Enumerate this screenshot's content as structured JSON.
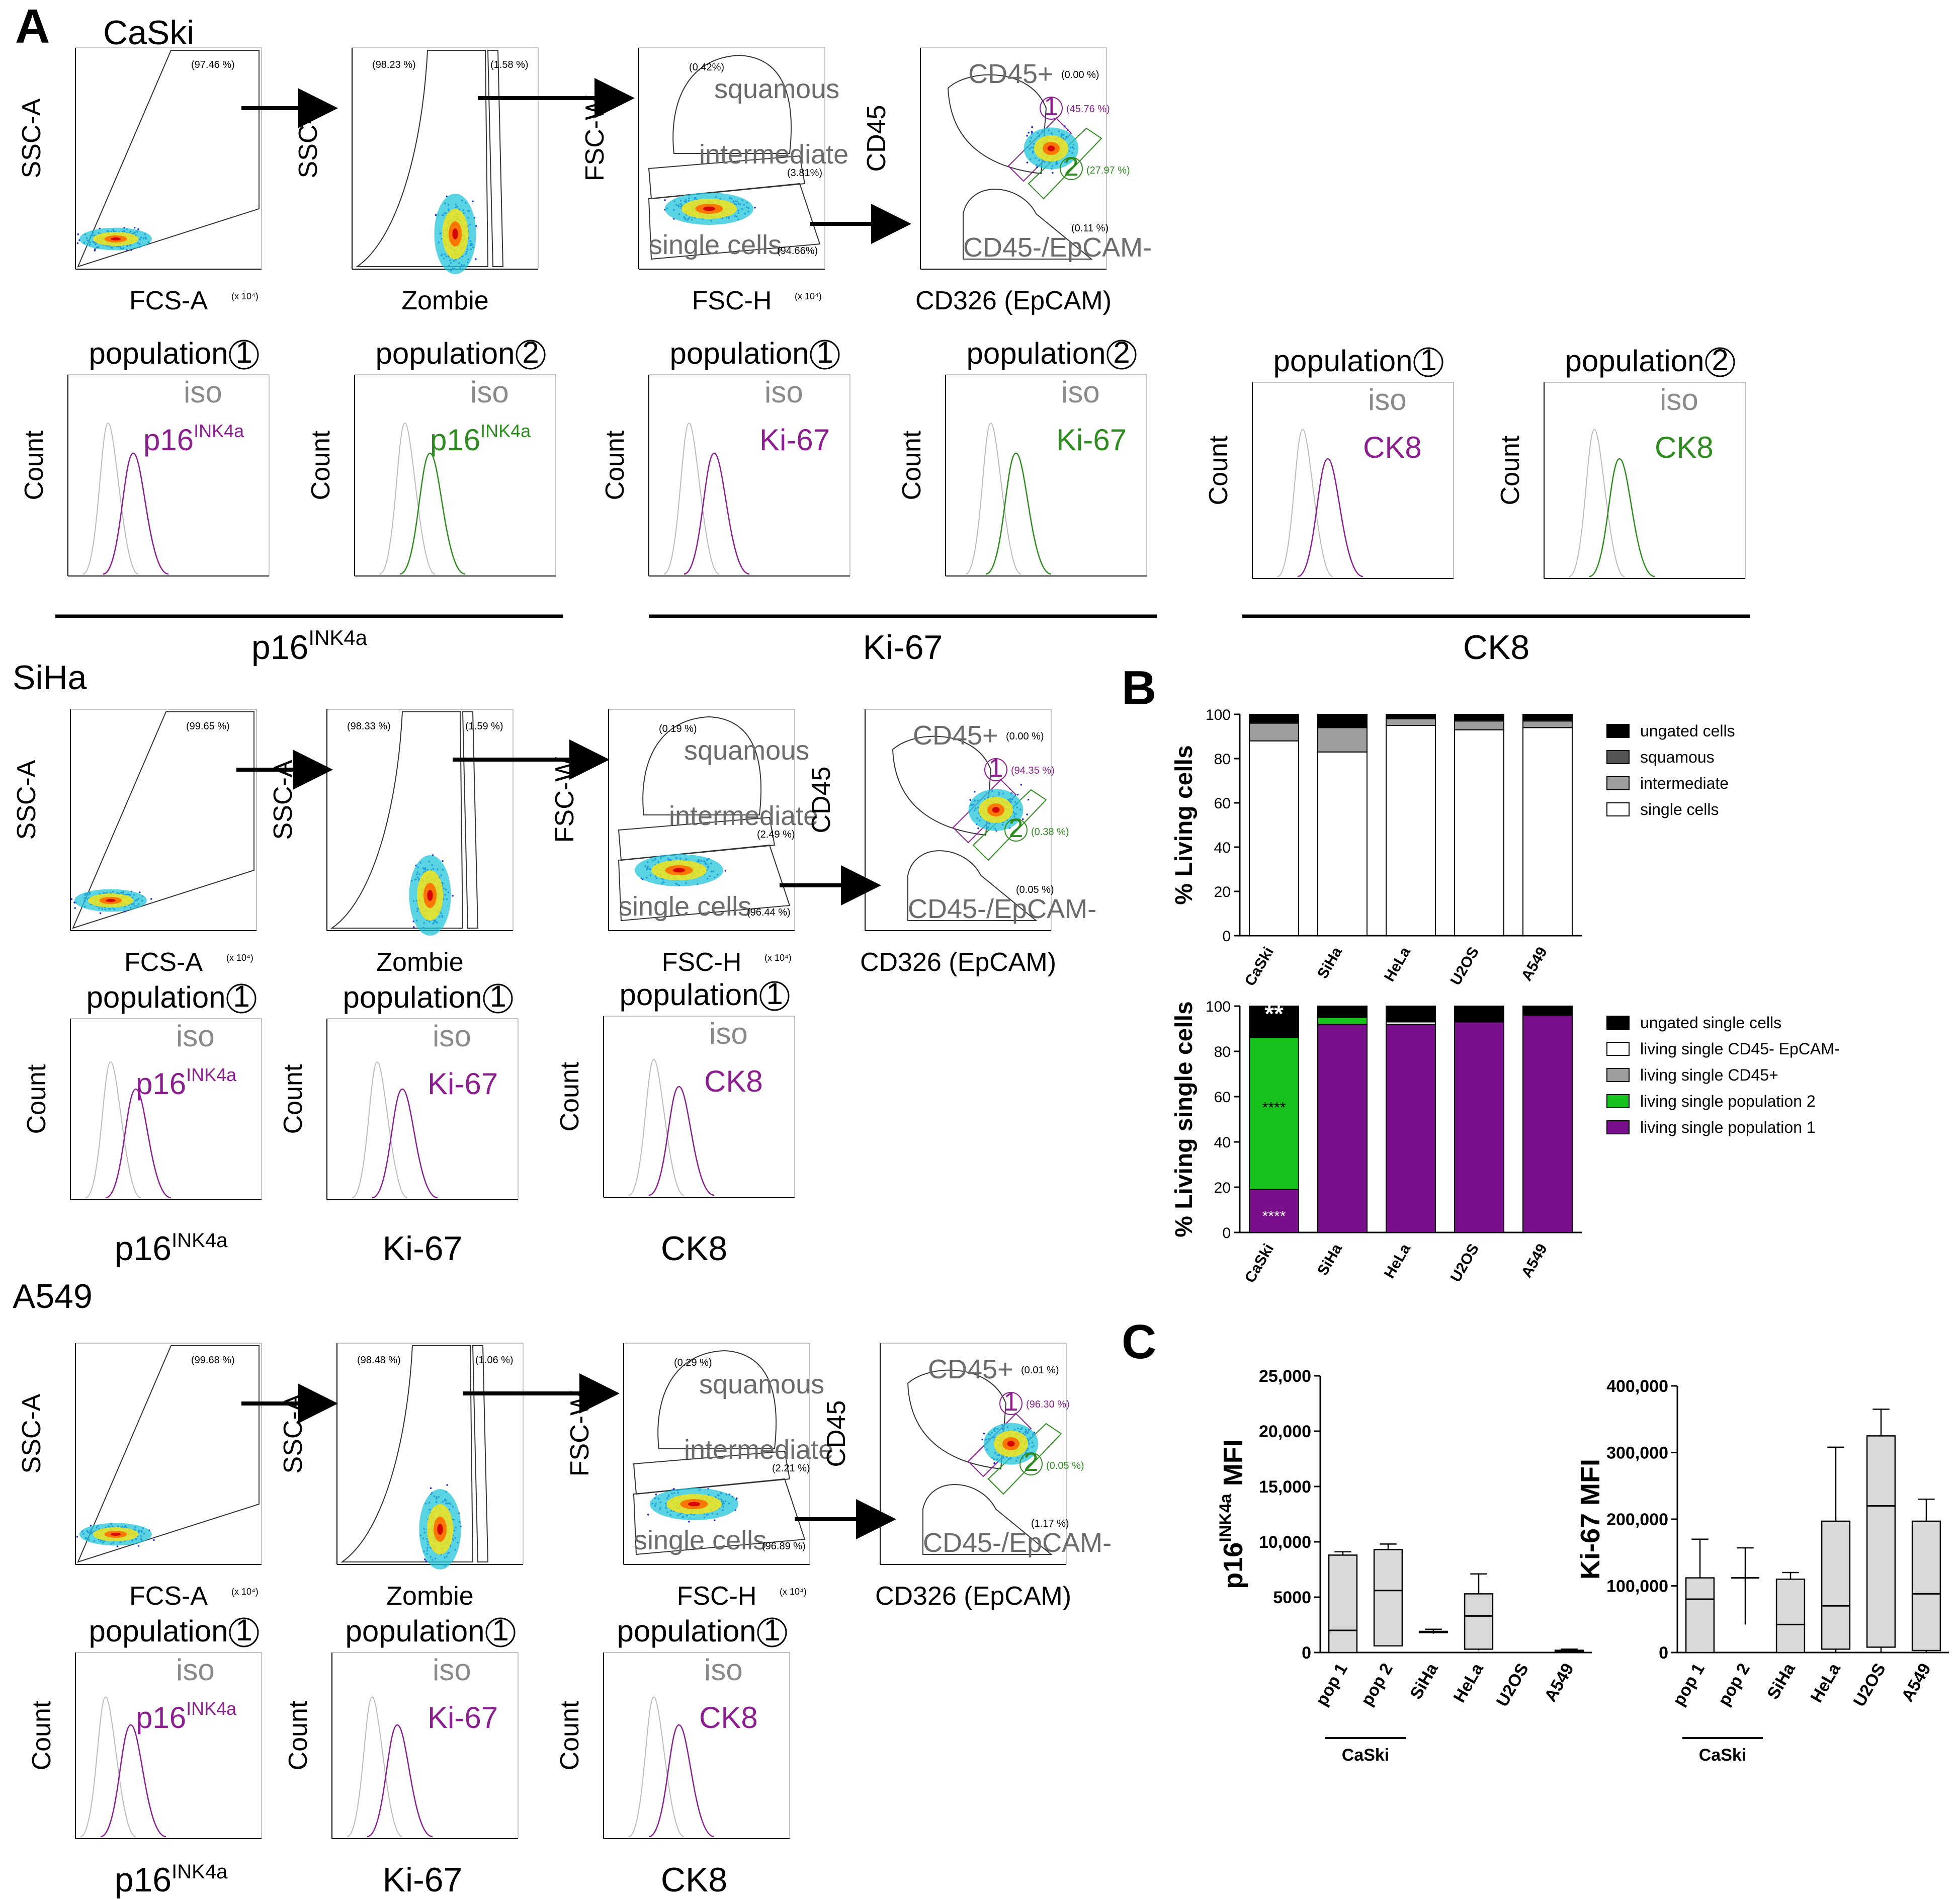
{
  "panel_letters": {
    "a": "A",
    "b": "B",
    "c": "C"
  },
  "cell_lines": {
    "caski": "CaSki",
    "siha": "SiHa",
    "a549": "A549"
  },
  "facs_labels": {
    "ssc_a": "SSC-A",
    "fcs_a": "FCS-A",
    "zombie": "Zombie",
    "fsc_w": "FSC-W",
    "fsc_h": "FSC-H",
    "cd45": "CD45",
    "cd326": "CD326 (EpCAM)",
    "count": "Count",
    "squamous": "squamous",
    "intermediate": "intermediate",
    "single_cells": "single cells",
    "cd45_pos": "CD45+",
    "cd45_neg_epcam_neg": "CD45-/EpCAM-",
    "iso": "iso",
    "p16": "p16",
    "ink4a": "INK4a",
    "ki67": "Ki-67",
    "ck8": "CK8",
    "population": "population",
    "pop1_circle": "1",
    "pop2_circle": "2",
    "x1e5": "(x 10⁵)",
    "x1e4": "(x 10⁴)",
    "x1e1": "(x 10¹)"
  },
  "facs_percent": {
    "caski": {
      "fcs": "(97.46 %)",
      "zombie_left": "(98.23 %)",
      "zombie_right": "(1.58 %)",
      "squamous": "(0.42%)",
      "intermediate": "(3.81%)",
      "single": "(94.66%)",
      "cd45pos": "(0.00 %)",
      "pop1": "(45.76 %)",
      "pop2": "(27.97 %)",
      "neg": "(0.11 %)"
    },
    "siha": {
      "fcs": "(99.65 %)",
      "zombie_left": "(98.33 %)",
      "zombie_right": "(1.59 %)",
      "squamous": "(0.19 %)",
      "intermediate": "(2.49 %)",
      "single": "(96.44 %)",
      "cd45pos": "(0.00 %)",
      "pop1": "(94.35 %)",
      "pop2": "(0.38 %)",
      "neg": "(0.05 %)"
    },
    "a549": {
      "fcs": "(99.68 %)",
      "zombie_left": "(98.48 %)",
      "zombie_right": "(1.06 %)",
      "squamous": "(0.29 %)",
      "intermediate": "(2.21 %)",
      "single": "(96.89 %)",
      "cd45pos": "(0.01 %)",
      "pop1": "(96.30 %)",
      "pop2": "(0.05 %)",
      "neg": "(1.17 %)"
    }
  },
  "colors": {
    "purple": "#8b1f8f",
    "green": "#2e8b1f",
    "gray": "#8a8a8a",
    "black": "#000000",
    "dot_blue": "#1a2fd6",
    "bar_purple": "#7a0f8c",
    "bar_green": "#17c21c",
    "box_fill": "#d9d9d9"
  },
  "chart_data": [
    {
      "type": "bar",
      "stacked": true,
      "panel": "B",
      "ylabel": "% Living cells",
      "ylim": [
        0,
        100
      ],
      "yticks": [
        "0",
        "20",
        "40",
        "60",
        "80",
        "100"
      ],
      "categories": [
        "CaSki",
        "SiHa",
        "HeLa",
        "U2OS",
        "A549"
      ],
      "legend_position": "right",
      "series": [
        {
          "name": "single cells",
          "color": "#ffffff",
          "values": [
            88,
            83,
            95,
            93,
            94
          ]
        },
        {
          "name": "intermediate",
          "color": "#9e9e9e",
          "values": [
            8,
            11,
            3,
            4,
            3
          ]
        },
        {
          "name": "squamous",
          "color": "#555555",
          "values": [
            0.5,
            0.5,
            0.5,
            0.5,
            0.5
          ]
        },
        {
          "name": "ungated cells",
          "color": "#000000",
          "values": [
            3.5,
            5.5,
            1.5,
            2.5,
            2.5
          ]
        }
      ]
    },
    {
      "type": "bar",
      "stacked": true,
      "panel": "B",
      "ylabel": "% Living single cells",
      "ylim": [
        0,
        100
      ],
      "yticks": [
        "0",
        "20",
        "40",
        "60",
        "80",
        "100"
      ],
      "categories": [
        "CaSki",
        "SiHa",
        "HeLa",
        "U2OS",
        "A549"
      ],
      "legend_position": "right",
      "annotations": {
        "caski_top": "**",
        "caski_middle": "****",
        "caski_bottom": "****"
      },
      "series": [
        {
          "name": "living single population 1",
          "color": "#7a0f8c",
          "values": [
            19,
            92,
            92,
            93,
            96
          ]
        },
        {
          "name": "living single population 2",
          "color": "#17c21c",
          "values": [
            67,
            3,
            0,
            0,
            0
          ]
        },
        {
          "name": "living single CD45+",
          "color": "#9e9e9e",
          "values": [
            0.5,
            0,
            0,
            0,
            0
          ]
        },
        {
          "name": "living single CD45- EpCAM-",
          "color": "#ffffff",
          "values": [
            0.5,
            0,
            1,
            0,
            0
          ]
        },
        {
          "name": "ungated single cells",
          "color": "#000000",
          "values": [
            13,
            5,
            7,
            7,
            4
          ]
        }
      ]
    },
    {
      "type": "box",
      "panel": "C",
      "ylabel": "p16",
      "ylabel_sup": "INK4a",
      "ylabel_suffix": " MFI",
      "ylim": [
        0,
        25000
      ],
      "yticks": [
        "0",
        "5000",
        "10,000",
        "15,000",
        "20,000",
        "25,000"
      ],
      "categories": [
        "pop 1",
        "pop 2",
        "SiHa",
        "HeLa",
        "U2OS",
        "A549"
      ],
      "group_label": "CaSki",
      "boxes": [
        {
          "min": 0,
          "q1": 0,
          "median": 2000,
          "q3": 8800,
          "max": 9100
        },
        {
          "min": 600,
          "q1": 600,
          "median": 5600,
          "q3": 9300,
          "max": 9800
        },
        {
          "min": 1700,
          "q1": 1800,
          "median": 1900,
          "q3": 1900,
          "max": 2100
        },
        {
          "min": 200,
          "q1": 300,
          "median": 3300,
          "q3": 5300,
          "max": 7100
        },
        {
          "min": 0,
          "q1": 0,
          "median": 0,
          "q3": 0,
          "max": 0
        },
        {
          "min": 0,
          "q1": 0,
          "median": 100,
          "q3": 200,
          "max": 300
        }
      ]
    },
    {
      "type": "box",
      "panel": "C",
      "ylabel": "Ki-67 MFI",
      "ylim": [
        0,
        400000
      ],
      "yticks": [
        "0",
        "100,000",
        "200,000",
        "300,000",
        "400,000"
      ],
      "categories": [
        "pop 1",
        "pop 2",
        "SiHa",
        "HeLa",
        "U2OS",
        "A549"
      ],
      "group_label": "CaSki",
      "boxes": [
        {
          "min": 0,
          "q1": 0,
          "median": 80000,
          "q3": 112000,
          "max": 170000
        },
        {
          "min": 42000,
          "q1": 112000,
          "median": 112000,
          "q3": 112000,
          "max": 157000
        },
        {
          "min": 0,
          "q1": 0,
          "median": 42000,
          "q3": 110000,
          "max": 120000
        },
        {
          "min": 0,
          "q1": 5000,
          "median": 70000,
          "q3": 197000,
          "max": 308000
        },
        {
          "min": 0,
          "q1": 8000,
          "median": 220000,
          "q3": 325000,
          "max": 365000
        },
        {
          "min": 0,
          "q1": 3000,
          "median": 88000,
          "q3": 197000,
          "max": 230000
        }
      ]
    }
  ]
}
